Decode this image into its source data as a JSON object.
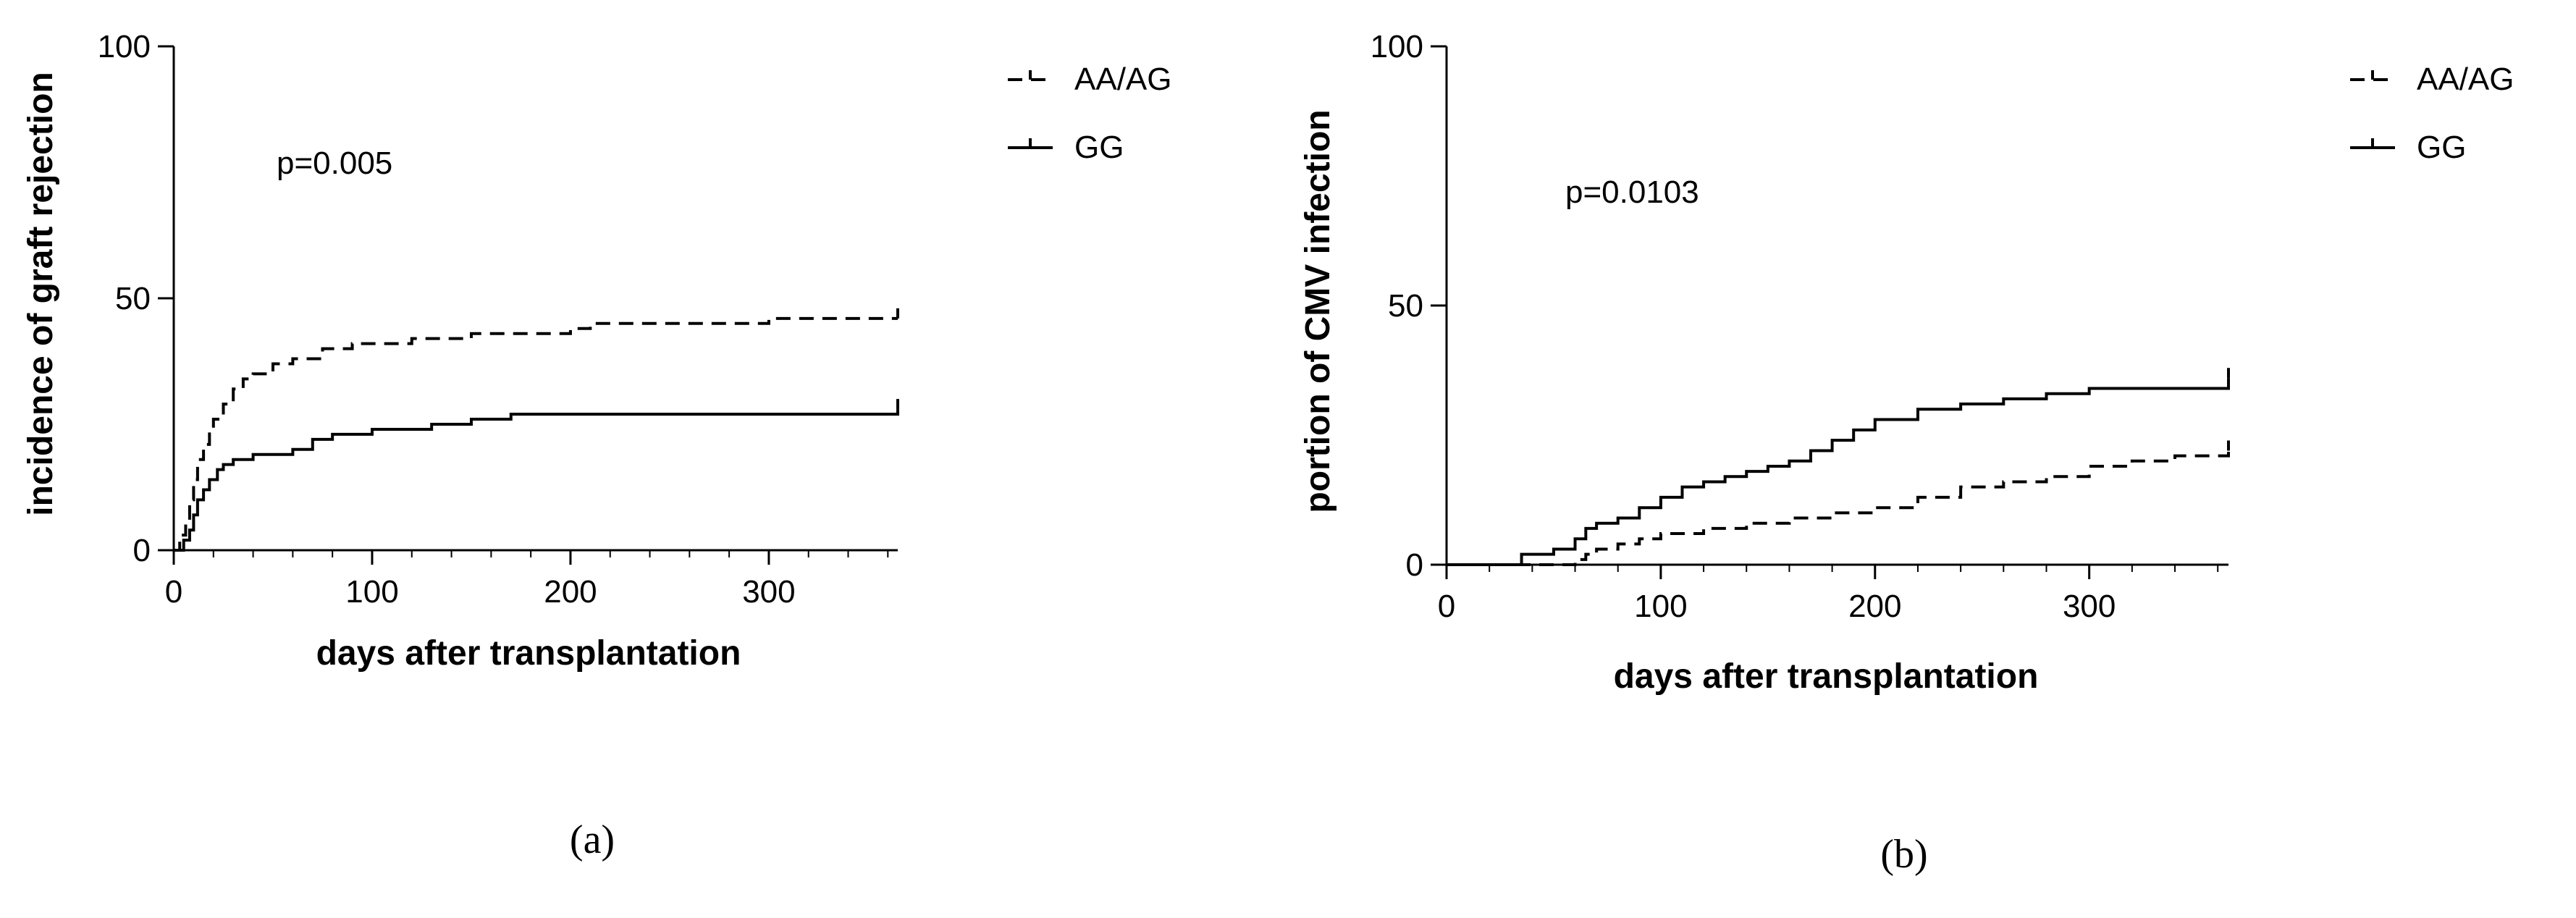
{
  "chart_data": [
    {
      "panel": "(a)",
      "type": "line",
      "step": true,
      "xlabel": "days after transplantation",
      "ylabel": "incidence of graft rejection",
      "xlim": [
        0,
        365
      ],
      "ylim": [
        0,
        100
      ],
      "xticks": [
        0,
        100,
        200,
        300
      ],
      "yticks": [
        0,
        50,
        100
      ],
      "annotation": "p=0.005",
      "legend_position": "top-right",
      "series": [
        {
          "name": "AA/AG",
          "style": "dashed",
          "x": [
            0,
            3,
            6,
            8,
            10,
            12,
            15,
            18,
            20,
            25,
            30,
            35,
            40,
            50,
            60,
            75,
            90,
            120,
            150,
            180,
            200,
            210,
            270,
            300,
            365
          ],
          "y": [
            0,
            3,
            6,
            10,
            14,
            18,
            21,
            24,
            26,
            29,
            32,
            34,
            35,
            37,
            38,
            40,
            41,
            42,
            43,
            43,
            44,
            45,
            45,
            46,
            46
          ]
        },
        {
          "name": "GG",
          "style": "solid",
          "x": [
            0,
            5,
            8,
            10,
            12,
            15,
            18,
            22,
            25,
            30,
            40,
            60,
            70,
            80,
            100,
            130,
            150,
            170,
            180,
            365
          ],
          "y": [
            0,
            2,
            4,
            7,
            10,
            12,
            14,
            16,
            17,
            18,
            19,
            20,
            22,
            23,
            24,
            25,
            26,
            27,
            27,
            28
          ]
        }
      ]
    },
    {
      "panel": "(b)",
      "type": "line",
      "step": true,
      "xlabel": "days after transplantation",
      "ylabel": "portion of CMV infection",
      "xlim": [
        0,
        365
      ],
      "ylim": [
        0,
        100
      ],
      "xticks": [
        0,
        100,
        200,
        300
      ],
      "yticks": [
        0,
        50,
        100
      ],
      "annotation": "p=0.0103",
      "legend_position": "top-right",
      "series": [
        {
          "name": "AA/AG",
          "style": "dashed",
          "x": [
            0,
            60,
            65,
            70,
            80,
            90,
            100,
            120,
            140,
            160,
            180,
            200,
            220,
            240,
            260,
            280,
            300,
            320,
            340,
            365
          ],
          "y": [
            0,
            1,
            2,
            3,
            4,
            5,
            6,
            7,
            8,
            9,
            10,
            11,
            13,
            15,
            16,
            17,
            19,
            20,
            21,
            22
          ]
        },
        {
          "name": "GG",
          "style": "solid",
          "x": [
            0,
            35,
            50,
            60,
            65,
            70,
            80,
            90,
            100,
            110,
            120,
            130,
            140,
            150,
            160,
            170,
            180,
            190,
            200,
            220,
            240,
            260,
            280,
            300,
            365
          ],
          "y": [
            0,
            2,
            3,
            5,
            7,
            8,
            9,
            11,
            13,
            15,
            16,
            17,
            18,
            19,
            20,
            22,
            24,
            26,
            28,
            30,
            31,
            32,
            33,
            34,
            36
          ]
        }
      ]
    }
  ]
}
